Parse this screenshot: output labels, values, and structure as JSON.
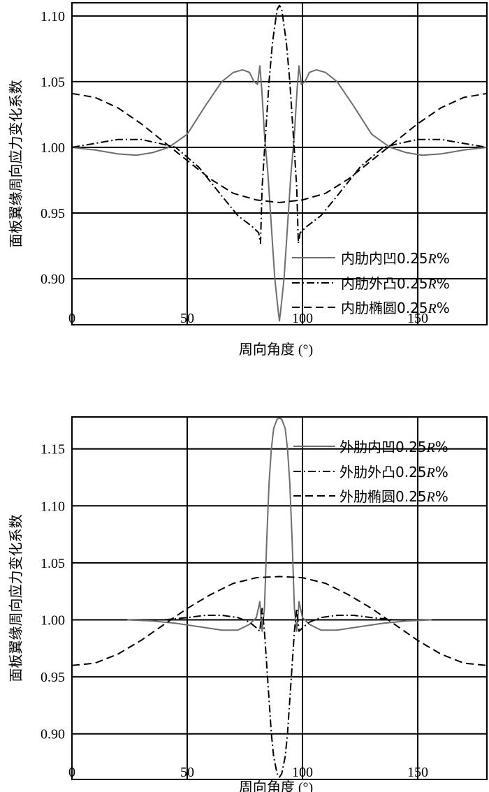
{
  "chart_data": [
    {
      "type": "line",
      "title": "",
      "xlabel": "周向角度 (°)",
      "ylabel": "面板翼缘周向应力变化系数",
      "xlim": [
        0,
        180
      ],
      "ylim": [
        0.865,
        1.11
      ],
      "xticks": [
        "0",
        "50",
        "100",
        "150"
      ],
      "yticks": [
        "0.90",
        "0.95",
        "1.00",
        "1.05",
        "1.10"
      ],
      "grid": true,
      "legend_position": "bottom-right",
      "series": [
        {
          "name": "内肋内凹0.25R%",
          "style": "solid",
          "color": "#6e6e6e",
          "x": [
            0,
            10,
            20,
            28,
            35,
            42,
            50,
            58,
            65,
            70,
            74,
            77,
            79,
            80.5,
            81.5,
            82.3,
            83.5,
            85,
            86.5,
            88,
            89.5,
            90,
            90.5,
            92,
            93.5,
            95,
            96.5,
            97.7,
            98.5,
            99.5,
            101,
            103,
            106,
            110,
            115,
            122,
            130,
            138,
            145,
            152,
            160,
            170,
            180
          ],
          "y": [
            1.0,
            0.998,
            0.995,
            0.994,
            0.996,
            1.0,
            1.01,
            1.032,
            1.05,
            1.057,
            1.059,
            1.057,
            1.05,
            1.048,
            1.062,
            1.045,
            1.01,
            0.98,
            0.94,
            0.9,
            0.875,
            0.868,
            0.875,
            0.9,
            0.94,
            0.98,
            1.01,
            1.045,
            1.062,
            1.048,
            1.05,
            1.057,
            1.059,
            1.057,
            1.05,
            1.032,
            1.01,
            1.0,
            0.996,
            0.994,
            0.995,
            0.998,
            1.0
          ]
        },
        {
          "name": "内肋外凸0.25R%",
          "style": "dashdot",
          "color": "#000000",
          "x": [
            0,
            10,
            20,
            30,
            38,
            45,
            55,
            65,
            72,
            78,
            81,
            81.8,
            82.5,
            84,
            85.5,
            87,
            89,
            90,
            91,
            93,
            94.5,
            96,
            97.5,
            98.2,
            99,
            102,
            108,
            115,
            125,
            135,
            142,
            150,
            160,
            170,
            180
          ],
          "y": [
            1.0,
            1.003,
            1.006,
            1.006,
            1.003,
            1.0,
            0.985,
            0.963,
            0.948,
            0.94,
            0.935,
            0.927,
            0.97,
            1.01,
            1.05,
            1.08,
            1.105,
            1.108,
            1.105,
            1.08,
            1.05,
            1.01,
            0.97,
            0.927,
            0.935,
            0.94,
            0.948,
            0.963,
            0.985,
            1.0,
            1.003,
            1.006,
            1.006,
            1.003,
            1.0
          ]
        },
        {
          "name": "内肋椭圆0.25R%",
          "style": "dashed",
          "color": "#000000",
          "x": [
            0,
            10,
            20,
            30,
            40,
            50,
            60,
            70,
            80,
            90,
            100,
            110,
            120,
            130,
            140,
            150,
            160,
            170,
            180
          ],
          "y": [
            1.041,
            1.038,
            1.03,
            1.018,
            1.004,
            0.99,
            0.976,
            0.965,
            0.96,
            0.958,
            0.96,
            0.965,
            0.976,
            0.99,
            1.004,
            1.018,
            1.03,
            1.038,
            1.041
          ]
        }
      ]
    },
    {
      "type": "line",
      "title": "",
      "xlabel": "周向角度 (°)",
      "ylabel": "面板翼缘周向应力变化系数",
      "xlim": [
        0,
        180
      ],
      "ylim": [
        0.86,
        1.178
      ],
      "xticks": [
        "0",
        "50",
        "100",
        "150"
      ],
      "yticks": [
        "0.90",
        "0.95",
        "1.00",
        "1.05",
        "1.10",
        "1.15"
      ],
      "grid": true,
      "legend_position": "top-right",
      "series": [
        {
          "name": "外肋内凹0.25R%",
          "style": "solid",
          "color": "#6e6e6e",
          "x": [
            24,
            35,
            45,
            55,
            65,
            72,
            77,
            80,
            81.5,
            82.5,
            83.5,
            84.5,
            85.5,
            86.5,
            87.5,
            89,
            90,
            91,
            92.5,
            93.5,
            94.5,
            95.5,
            96.5,
            97.5,
            98.5,
            100,
            103,
            108,
            115,
            125,
            135,
            145,
            156
          ],
          "y": [
            1.0,
            0.999,
            0.997,
            0.994,
            0.991,
            0.991,
            0.996,
            1.002,
            1.016,
            0.99,
            1.01,
            1.07,
            1.12,
            1.15,
            1.168,
            1.176,
            1.177,
            1.176,
            1.168,
            1.15,
            1.12,
            1.07,
            1.01,
            0.99,
            1.016,
            1.002,
            0.996,
            0.991,
            0.991,
            0.994,
            0.997,
            0.999,
            1.0
          ]
        },
        {
          "name": "外肋外凸0.25R%",
          "style": "dashdot",
          "color": "#000000",
          "x": [
            40,
            50,
            58,
            65,
            72,
            77,
            80,
            81.5,
            82.5,
            83.5,
            84.5,
            85.5,
            86.5,
            87.5,
            89,
            90,
            91,
            92.5,
            93.5,
            94.5,
            95.5,
            96.5,
            97.5,
            98.5,
            100,
            103,
            108,
            115,
            122,
            130,
            140
          ],
          "y": [
            1.0,
            1.002,
            1.004,
            1.004,
            1.002,
            0.998,
            0.993,
            0.99,
            1.01,
            0.99,
            0.96,
            0.93,
            0.9,
            0.88,
            0.865,
            0.862,
            0.865,
            0.88,
            0.9,
            0.93,
            0.96,
            0.99,
            1.01,
            0.99,
            0.993,
            0.998,
            1.002,
            1.004,
            1.004,
            1.002,
            1.0
          ]
        },
        {
          "name": "外肋椭圆0.25R%",
          "style": "dashed",
          "color": "#000000",
          "x": [
            0,
            10,
            20,
            30,
            40,
            50,
            60,
            70,
            80,
            90,
            100,
            110,
            120,
            130,
            140,
            150,
            160,
            170,
            180
          ],
          "y": [
            0.96,
            0.962,
            0.97,
            0.982,
            0.996,
            1.01,
            1.022,
            1.032,
            1.037,
            1.038,
            1.037,
            1.032,
            1.022,
            1.01,
            0.996,
            0.982,
            0.97,
            0.962,
            0.96
          ]
        }
      ]
    }
  ]
}
